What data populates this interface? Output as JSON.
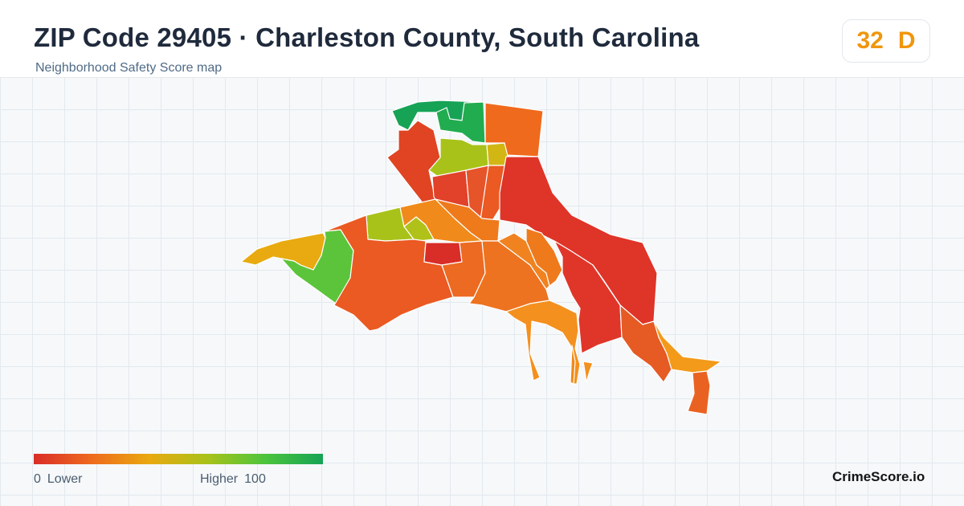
{
  "header": {
    "title": "ZIP Code 29405 · Charleston County, South Carolina",
    "subtitle": "Neighborhood Safety Score map"
  },
  "score": {
    "value": "32",
    "grade": "D",
    "color": "#f0960e"
  },
  "legend": {
    "min_value": "0",
    "min_label": "Lower",
    "max_label": "Higher",
    "max_value": "100",
    "gradient_colors": [
      "#d92d27",
      "#ee6b1e",
      "#e9a90f",
      "#a9c21a",
      "#4cc43c",
      "#16a356"
    ]
  },
  "brand": "CrimeScore.io",
  "map": {
    "regions": [
      {
        "name": "north-tip",
        "color": "#16a356"
      },
      {
        "name": "north-inner",
        "color": "#22ac50"
      },
      {
        "name": "northeast-block",
        "color": "#ef6a1c"
      },
      {
        "name": "yellow-green-band",
        "color": "#a9c21a"
      },
      {
        "name": "yellow-east",
        "color": "#d2b613"
      },
      {
        "name": "northwest-strip",
        "color": "#e04423"
      },
      {
        "name": "central-red",
        "color": "#e2412a"
      },
      {
        "name": "inner-a",
        "color": "#e6542a"
      },
      {
        "name": "inner-b",
        "color": "#ea5a22"
      },
      {
        "name": "east-main",
        "color": "#df3428"
      },
      {
        "name": "west-yellow-green",
        "color": "#a9c21a"
      },
      {
        "name": "west-yellow-green-small",
        "color": "#b0c21a"
      },
      {
        "name": "west-orange",
        "color": "#f08a1a"
      },
      {
        "name": "west-orange-2",
        "color": "#ee7a1c"
      },
      {
        "name": "far-west-tail",
        "color": "#e8aa10"
      },
      {
        "name": "west-green",
        "color": "#5cc43a"
      },
      {
        "name": "southwest-main",
        "color": "#ea5a22"
      },
      {
        "name": "small-red",
        "color": "#d92d27"
      },
      {
        "name": "south-central",
        "color": "#ec6a22"
      },
      {
        "name": "south-central-2",
        "color": "#ee7320"
      },
      {
        "name": "mid-pieces",
        "color": "#f08320"
      },
      {
        "name": "mid-pieces-2",
        "color": "#ee7a1c"
      },
      {
        "name": "south-light-orange",
        "color": "#f4901e"
      },
      {
        "name": "south-red",
        "color": "#e0362a"
      },
      {
        "name": "southeast-orange",
        "color": "#e65a24"
      },
      {
        "name": "southeast-tail",
        "color": "#f39a1a"
      },
      {
        "name": "far-southeast",
        "color": "#ea6222"
      },
      {
        "name": "south-spike",
        "color": "#f4901e"
      },
      {
        "name": "south-spike-2",
        "color": "#f08a1a"
      }
    ]
  }
}
